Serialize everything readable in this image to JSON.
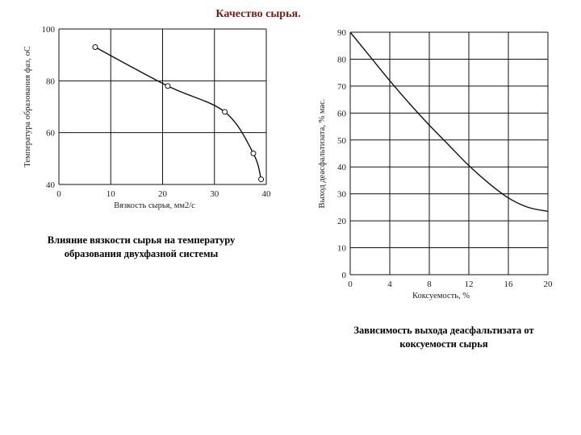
{
  "slide": {
    "title": "Качество сырья.",
    "caption_left": "Влияние вязкости сырья на температуру образования двухфазной системы",
    "caption_right": "Зависимость выхода деасфальтизата от коксуемости сырья"
  },
  "chart_data": [
    {
      "type": "line",
      "title": "",
      "xlabel": "Вязкость сырья, мм2/с",
      "ylabel": "Температура образования фаз, оС",
      "xlim": [
        0,
        40
      ],
      "ylim": [
        40,
        100
      ],
      "xticks": [
        0,
        10,
        20,
        30,
        40
      ],
      "yticks": [
        40,
        60,
        80,
        100
      ],
      "grid": true,
      "series": [
        {
          "markers": true,
          "x": [
            7,
            21,
            32,
            37.5,
            39
          ],
          "y": [
            93,
            78,
            68,
            52,
            42
          ]
        }
      ]
    },
    {
      "type": "line",
      "title": "",
      "xlabel": "Коксуемость, %",
      "ylabel": "Выход деасфальтизата, % мас.",
      "xlim": [
        0,
        20
      ],
      "ylim": [
        0,
        90
      ],
      "xticks": [
        0,
        4,
        8,
        12,
        16,
        20
      ],
      "yticks": [
        0,
        10,
        20,
        30,
        40,
        50,
        60,
        70,
        80,
        90
      ],
      "grid": true,
      "series": [
        {
          "markers": false,
          "x": [
            0,
            2,
            4,
            6,
            8,
            10,
            12,
            14,
            16,
            18,
            20
          ],
          "y": [
            90,
            81,
            72,
            63.5,
            55.5,
            48,
            40.5,
            34,
            28.5,
            25,
            23.5
          ]
        }
      ]
    }
  ]
}
